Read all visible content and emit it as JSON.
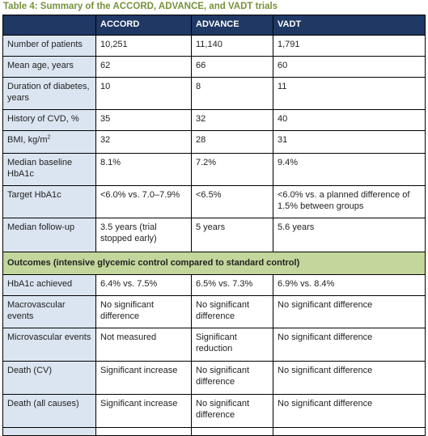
{
  "title": "Table 4: Summary of the ACCORD, ADVANCE, and VADT trials",
  "table": {
    "header": [
      "ACCORD",
      "ADVANCE",
      "VADT"
    ],
    "rows": [
      [
        "Number of patients",
        "10,251",
        "11,140",
        "1,791"
      ],
      [
        "Mean age, years",
        "62",
        "66",
        "60"
      ],
      [
        "Duration of diabetes, years",
        "10",
        "8",
        "11"
      ],
      [
        "History of CVD, %",
        "35",
        "32",
        "40"
      ],
      [
        {
          "text": "BMI, kg/m",
          "sup": "2"
        },
        "32",
        "28",
        "31"
      ],
      [
        "Median baseline HbA1c",
        "8.1%",
        "7.2%",
        "9.4%"
      ],
      [
        "Target HbA1c",
        "<6.0% vs. 7.0–7.9%",
        "<6.5%",
        "<6.0% vs. a planned difference of 1.5% between groups"
      ],
      [
        "Median follow-up",
        "3.5 years (trial stopped early)",
        "5 years",
        "5.6 years"
      ]
    ],
    "section": "Outcomes (intensive glycemic control compared to standard control)",
    "outcome_rows": [
      [
        "HbA1c achieved",
        "6.4% vs. 7.5%",
        "6.5% vs. 7.3%",
        "6.9% vs. 8.4%"
      ],
      [
        "Macrovascular events",
        "No significant difference",
        "No significant difference",
        "No significant difference"
      ],
      [
        "Microvascular events",
        "Not measured",
        "Significant reduction",
        "No significant difference"
      ],
      [
        "Death (CV)",
        "Significant increase",
        "No significant difference",
        "No significant difference"
      ],
      [
        "Death (all causes)",
        "Significant increase",
        "No significant difference",
        "No significant difference"
      ]
    ]
  }
}
